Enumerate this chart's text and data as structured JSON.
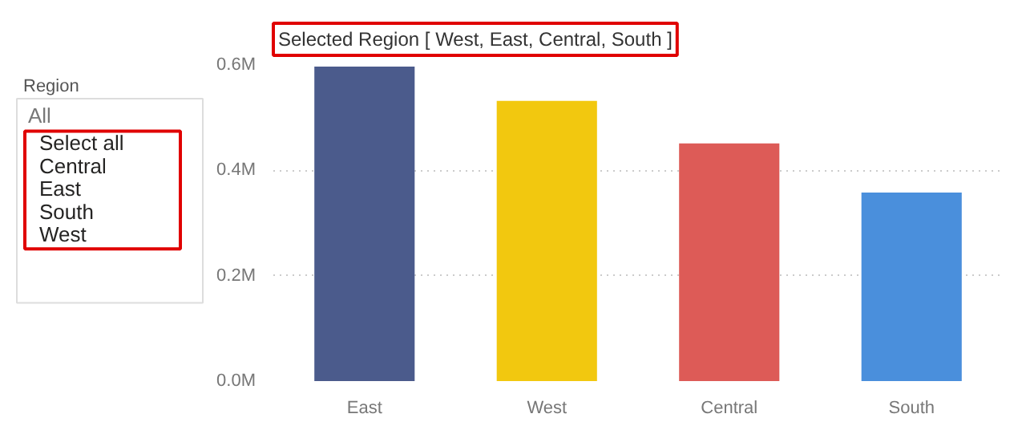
{
  "chart_data": [
    {
      "type": "other",
      "title": "Region",
      "annotations": [
        "All",
        "Select all",
        "Central",
        "East",
        "South",
        "West"
      ]
    },
    {
      "type": "bar",
      "title": "Selected Region [ West, East, Central, South ]",
      "categories": [
        "East",
        "West",
        "Central",
        "South"
      ],
      "values": [
        0.597,
        0.532,
        0.451,
        0.358
      ],
      "colors": [
        "#4b5b8c",
        "#f2c80f",
        "#dd5b57",
        "#4a8fdc"
      ],
      "ylim": [
        0,
        0.6
      ],
      "yticks": [
        {
          "value": 0,
          "label": "0.0M"
        },
        {
          "value": 0.2,
          "label": "0.2M"
        },
        {
          "value": 0.4,
          "label": "0.4M"
        },
        {
          "value": 0.6,
          "label": "0.6M"
        }
      ],
      "grid": "y"
    }
  ]
}
